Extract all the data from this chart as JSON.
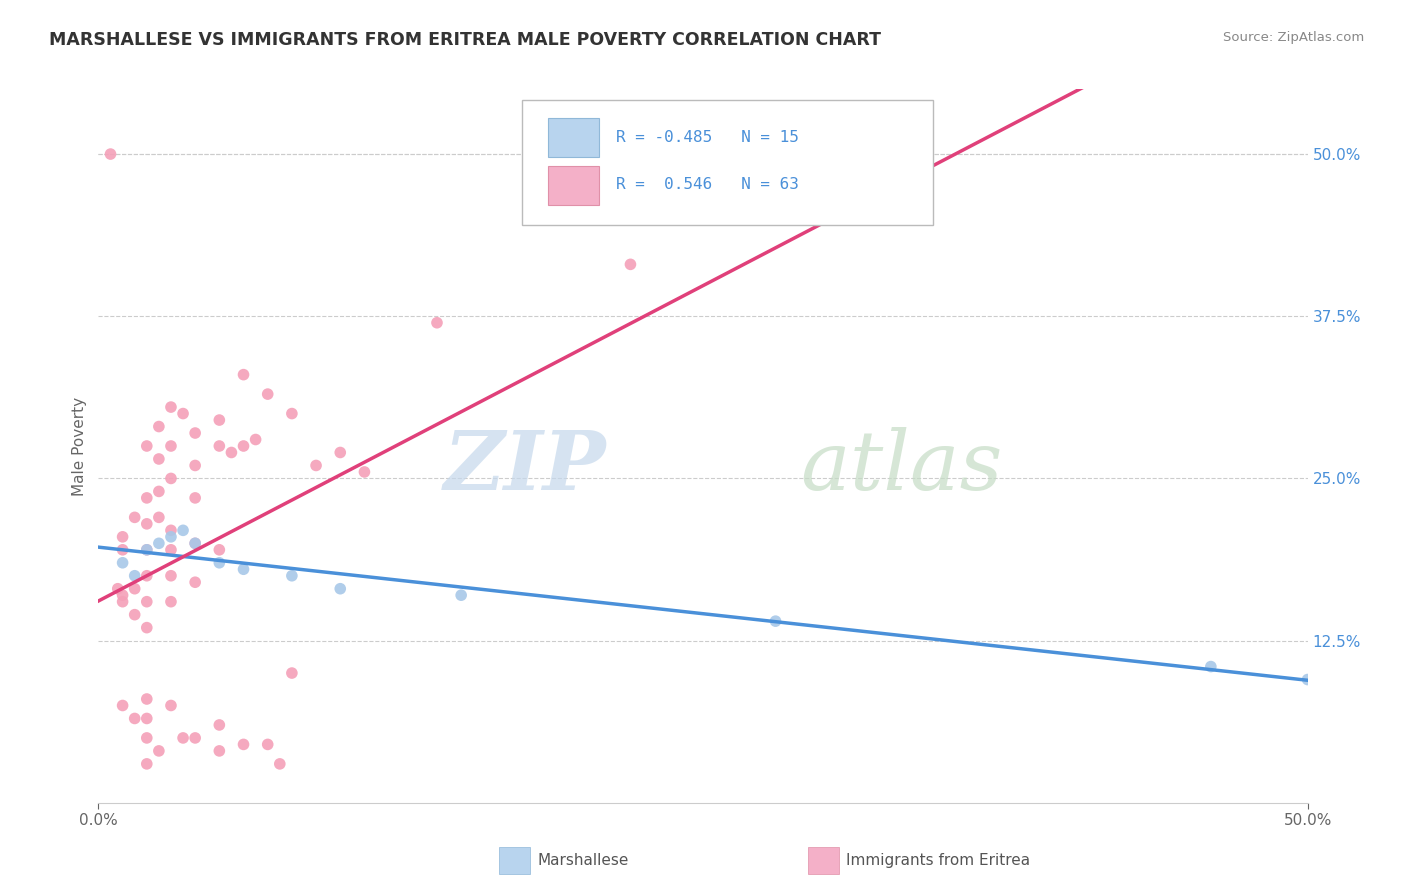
{
  "title": "MARSHALLESE VS IMMIGRANTS FROM ERITREA MALE POVERTY CORRELATION CHART",
  "source": "Source: ZipAtlas.com",
  "ylabel": "Male Poverty",
  "xlim": [
    0.0,
    50.0
  ],
  "ylim": [
    0.0,
    55.0
  ],
  "yticks": [
    12.5,
    25.0,
    37.5,
    50.0
  ],
  "xtick_left": "0.0%",
  "xtick_right": "50.0%",
  "marshallese_color": "#a8c8e8",
  "eritrea_color": "#f4a0b8",
  "trendline_blue": "#4a90d9",
  "trendline_pink": "#e0407a",
  "background_color": "#ffffff",
  "grid_color": "#cccccc",
  "title_color": "#333333",
  "source_color": "#888888",
  "ytick_color": "#4a90d9",
  "legend_r1": "R = -0.485",
  "legend_n1": "N = 15",
  "legend_r2": "R =  0.546",
  "legend_n2": "N = 63",
  "legend_label1": "Marshallese",
  "legend_label2": "Immigrants from Eritrea",
  "marsh_x": [
    1.0,
    1.5,
    2.0,
    2.5,
    3.0,
    3.5,
    4.0,
    5.0,
    6.0,
    8.0,
    10.0,
    15.0,
    28.0,
    46.0,
    50.0
  ],
  "marsh_y": [
    18.5,
    17.5,
    19.5,
    20.0,
    20.5,
    21.0,
    20.0,
    18.5,
    18.0,
    17.5,
    16.5,
    16.0,
    14.0,
    10.5,
    9.5
  ],
  "eri_x": [
    0.5,
    0.8,
    1.0,
    1.0,
    1.0,
    1.0,
    1.0,
    1.5,
    1.5,
    1.5,
    1.5,
    2.0,
    2.0,
    2.0,
    2.0,
    2.0,
    2.0,
    2.0,
    2.0,
    2.0,
    2.0,
    2.0,
    2.5,
    2.5,
    2.5,
    2.5,
    2.5,
    3.0,
    3.0,
    3.0,
    3.0,
    3.0,
    3.0,
    3.0,
    3.0,
    3.5,
    3.5,
    4.0,
    4.0,
    4.0,
    4.0,
    4.0,
    4.0,
    5.0,
    5.0,
    5.0,
    5.0,
    5.0,
    5.5,
    6.0,
    6.0,
    6.0,
    6.5,
    7.0,
    7.0,
    7.5,
    8.0,
    8.0,
    9.0,
    10.0,
    11.0,
    14.0,
    22.0
  ],
  "eri_y": [
    50.0,
    16.5,
    16.0,
    15.5,
    20.5,
    19.5,
    7.5,
    22.0,
    16.5,
    14.5,
    6.5,
    27.5,
    23.5,
    21.5,
    19.5,
    17.5,
    15.5,
    13.5,
    8.0,
    6.5,
    5.0,
    3.0,
    29.0,
    26.5,
    24.0,
    22.0,
    4.0,
    30.5,
    27.5,
    25.0,
    21.0,
    19.5,
    17.5,
    15.5,
    7.5,
    30.0,
    5.0,
    28.5,
    26.0,
    23.5,
    20.0,
    17.0,
    5.0,
    29.5,
    27.5,
    19.5,
    6.0,
    4.0,
    27.0,
    33.0,
    27.5,
    4.5,
    28.0,
    31.5,
    4.5,
    3.0,
    30.0,
    10.0,
    26.0,
    27.0,
    25.5,
    37.0,
    41.5
  ]
}
